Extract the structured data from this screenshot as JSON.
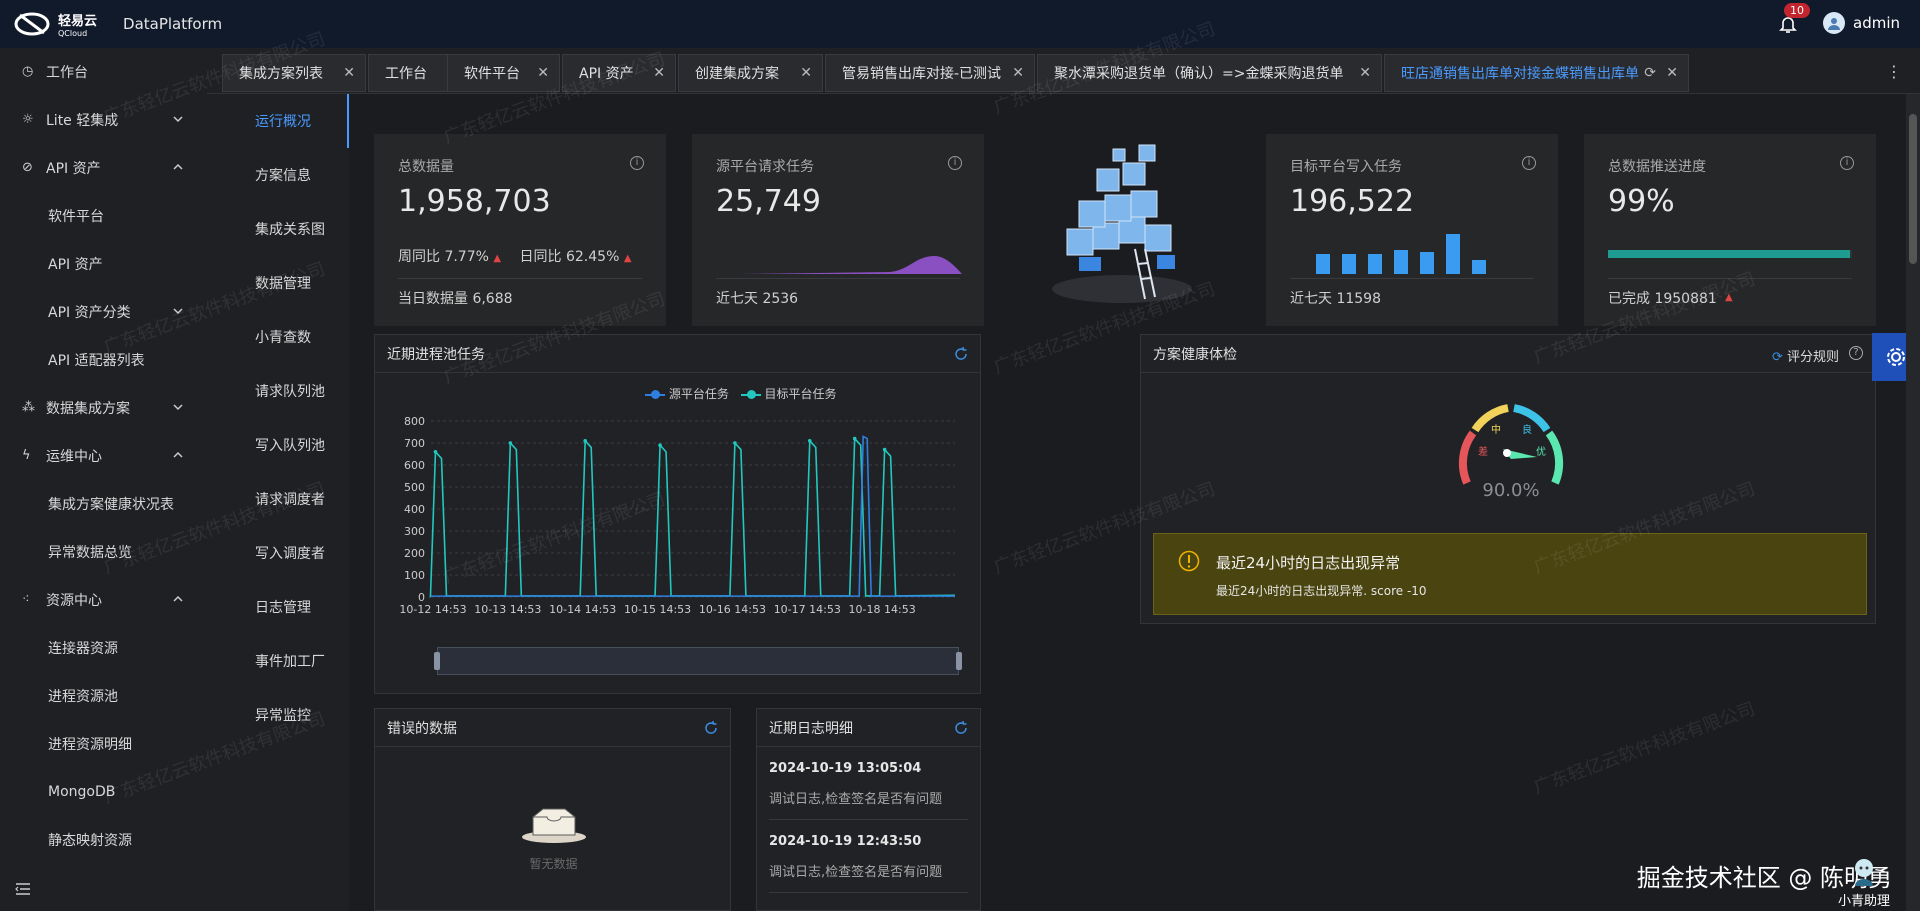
{
  "header": {
    "logo_name": "轻易云",
    "logo_sub": "QCloud",
    "app_name": "DataPlatform",
    "notifications": "10",
    "user": "admin"
  },
  "sidebar": {
    "items": [
      {
        "label": "工作台",
        "icon": "clock-icon"
      },
      {
        "label": "Lite 轻集成",
        "icon": "lightbulb-icon"
      },
      {
        "label": "API 资产",
        "icon": "compass-icon"
      },
      {
        "label": "软件平台"
      },
      {
        "label": "API 资产"
      },
      {
        "label": "API 资产分类"
      },
      {
        "label": "API 适配器列表"
      },
      {
        "label": "数据集成方案",
        "icon": "nodes-icon"
      },
      {
        "label": "运维中心",
        "icon": "bolt-icon"
      },
      {
        "label": "集成方案健康状况表"
      },
      {
        "label": "异常数据总览"
      },
      {
        "label": "资源中心",
        "icon": "network-icon"
      },
      {
        "label": "连接器资源"
      },
      {
        "label": "进程资源池"
      },
      {
        "label": "进程资源明细"
      },
      {
        "label": "MongoDB"
      },
      {
        "label": "静态映射资源"
      }
    ]
  },
  "tabs": [
    {
      "label": "集成方案列表"
    },
    {
      "label": "工作台"
    },
    {
      "label": "软件平台"
    },
    {
      "label": "API 资产"
    },
    {
      "label": "创建集成方案"
    },
    {
      "label": "管易销售出库对接-已测试"
    },
    {
      "label": "聚水潭采购退货单（确认）=>金蝶采购退货单"
    },
    {
      "label": "旺店通销售出库单对接金蝶销售出库单"
    }
  ],
  "subnav": [
    "运行概况",
    "方案信息",
    "集成关系图",
    "数据管理",
    "小青查数",
    "请求队列池",
    "写入队列池",
    "请求调度者",
    "写入调度者",
    "日志管理",
    "事件加工厂",
    "异常监控"
  ],
  "stats": {
    "total": {
      "title": "总数据量",
      "value": "1,958,703",
      "wow": "周同比 7.77%",
      "dod": "日同比 62.45%",
      "today": "当日数据量  6,688"
    },
    "source": {
      "title": "源平台请求任务",
      "value": "25,749",
      "week": "近七天  2536"
    },
    "target": {
      "title": "目标平台写入任务",
      "value": "196,522",
      "week": "近七天  11598"
    },
    "progress": {
      "title": "总数据推送进度",
      "value": "99%",
      "done": "已完成 1950881",
      "percent": 0.99
    }
  },
  "chart_panel": {
    "title": "近期进程池任务"
  },
  "health_panel": {
    "title": "方案健康体检",
    "rule_label": "评分规则",
    "gauge_value": "90.0%",
    "gauge_labels": [
      "差",
      "中",
      "良",
      "优"
    ],
    "alert_title": "最近24小时的日志出现异常",
    "alert_desc": "最近24小时的日志出现异常. score -10"
  },
  "error_panel": {
    "title": "错误的数据",
    "empty": "暂无数据"
  },
  "log_panel": {
    "title": "近期日志明细",
    "items": [
      {
        "time": "2024-10-19 13:05:04",
        "msg": "调试日志,检查签名是否有问题"
      },
      {
        "time": "2024-10-19 12:43:50",
        "msg": "调试日志,检查签名是否有问题"
      }
    ]
  },
  "watermark": "广东轻亿云软件科技有限公司",
  "footer_brand": "掘金技术社区 @ 陈明勇",
  "assistant_label": "小青助理",
  "chart_data": {
    "type": "line",
    "x": [
      "10-12 14:53",
      "10-13 14:53",
      "10-14 14:53",
      "10-15 14:53",
      "10-16 14:53",
      "10-17 14:53",
      "10-18 14:53"
    ],
    "ylim": [
      0,
      800
    ],
    "yticks": [
      0,
      100,
      200,
      300,
      400,
      500,
      600,
      700,
      800
    ],
    "grid": true,
    "legend_position": "top",
    "series": [
      {
        "name": "源平台任务",
        "color": "#2f7fe0"
      },
      {
        "name": "目标平台任务",
        "color": "#22c8c0",
        "peaks": [
          {
            "at": 0.1,
            "value": 660
          },
          {
            "at": 1.1,
            "value": 700
          },
          {
            "at": 2.1,
            "value": 710
          },
          {
            "at": 3.1,
            "value": 690
          },
          {
            "at": 4.1,
            "value": 700
          },
          {
            "at": 5.1,
            "value": 710
          },
          {
            "at": 5.7,
            "value": 720
          },
          {
            "at": 6.1,
            "value": 670
          }
        ]
      }
    ]
  }
}
